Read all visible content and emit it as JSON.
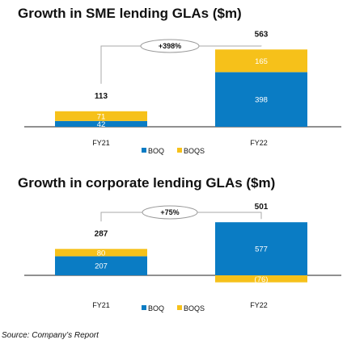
{
  "chart_data": [
    {
      "type": "bar",
      "stacked": true,
      "title": "Growth in SME lending GLAs ($m)",
      "categories": [
        "FY21",
        "FY22"
      ],
      "series": [
        {
          "name": "BOQ",
          "values": [
            42,
            398
          ],
          "labels": [
            "42",
            "398"
          ]
        },
        {
          "name": "BOQS",
          "values": [
            71,
            165
          ],
          "labels": [
            "71",
            "165"
          ]
        }
      ],
      "totals": [
        "113",
        "563"
      ],
      "growth_label": "+398%",
      "legend": "bottom-center",
      "colors": {
        "BOQ": "#0a7cc4",
        "BOQS": "#f6c11a"
      }
    },
    {
      "type": "bar",
      "stacked": true,
      "title": "Growth in corporate lending GLAs ($m)",
      "categories": [
        "FY21",
        "FY22"
      ],
      "series": [
        {
          "name": "BOQ",
          "values": [
            207,
            577
          ],
          "labels": [
            "207",
            "577"
          ]
        },
        {
          "name": "BOQS",
          "values": [
            80,
            -76
          ],
          "labels": [
            "80",
            "(76)"
          ]
        }
      ],
      "totals": [
        "287",
        "501"
      ],
      "growth_label": "+75%",
      "legend": "bottom-center",
      "colors": {
        "BOQ": "#0a7cc4",
        "BOQS": "#f6c11a"
      }
    }
  ],
  "source": "Source: Company’s Report"
}
